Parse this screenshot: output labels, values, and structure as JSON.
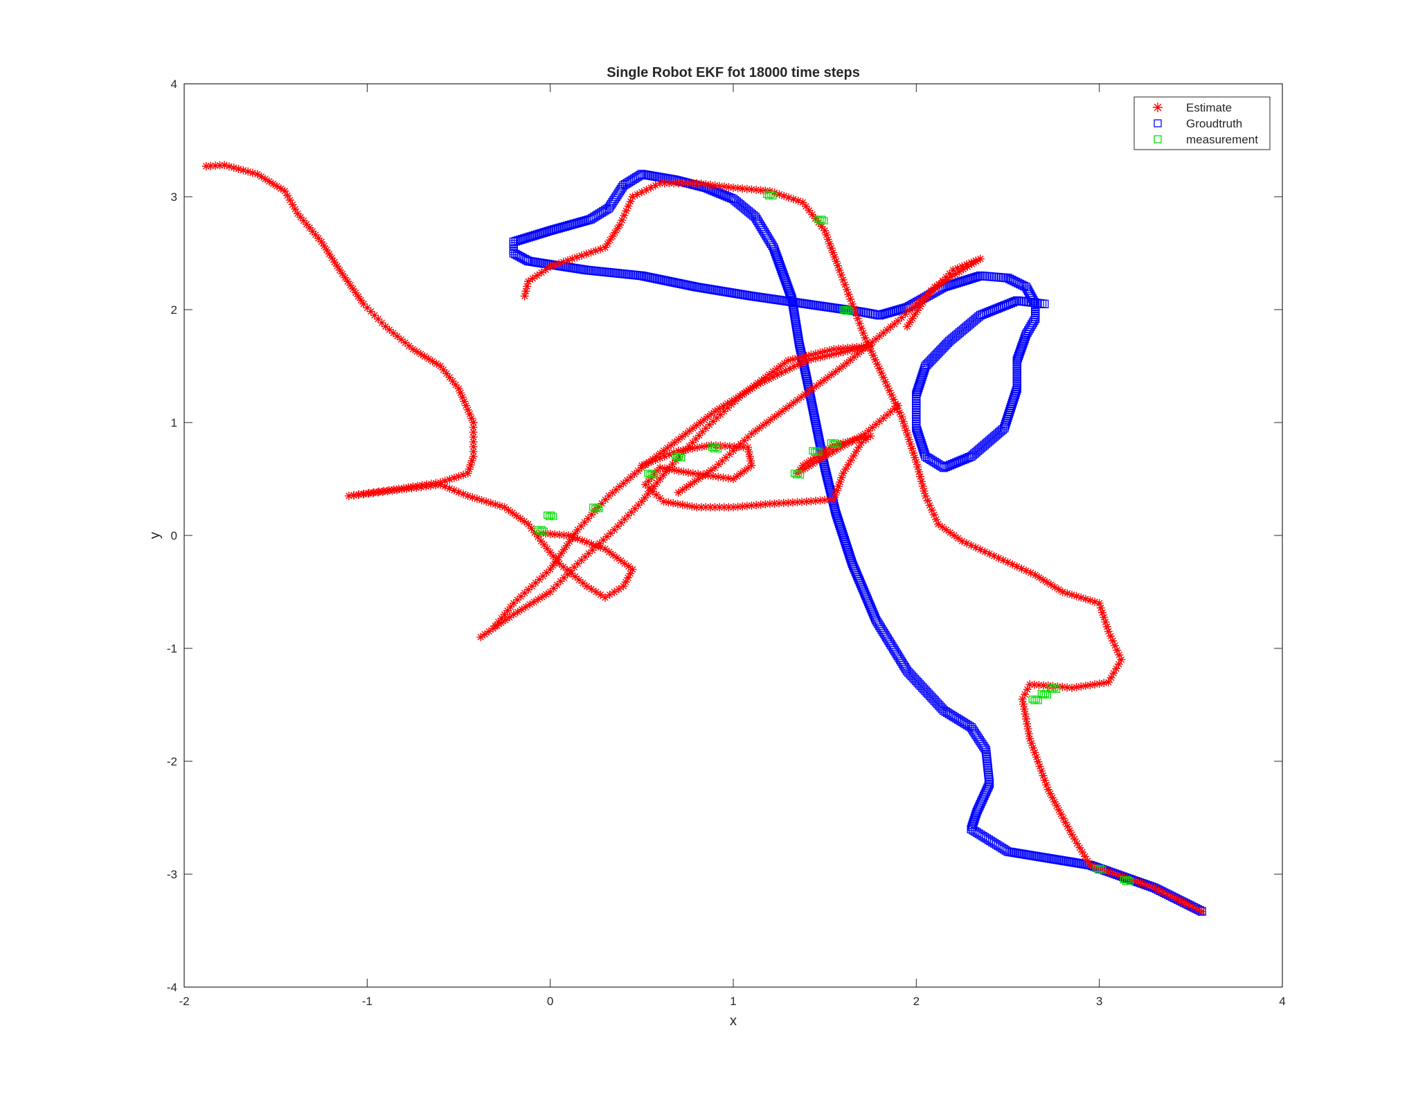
{
  "chart_data": {
    "type": "scatter",
    "title": "Single Robot EKF fot 18000 time steps",
    "xlabel": "x",
    "ylabel": "y",
    "xlim": [
      -2,
      4
    ],
    "ylim": [
      -4,
      4
    ],
    "xticks": [
      "-2",
      "-1",
      "0",
      "1",
      "2",
      "3",
      "4"
    ],
    "yticks": [
      "-4",
      "-3",
      "-2",
      "-1",
      "0",
      "1",
      "2",
      "3",
      "4"
    ],
    "grid": false,
    "legend_position": "top-right",
    "series": [
      {
        "name": "Groudtruth",
        "marker": "square",
        "color": "#0000ff",
        "points": [
          [
            -0.12,
            2.43
          ],
          [
            -0.2,
            2.5
          ],
          [
            -0.2,
            2.6
          ],
          [
            0.0,
            2.7
          ],
          [
            0.22,
            2.8
          ],
          [
            0.32,
            2.9
          ],
          [
            0.4,
            3.1
          ],
          [
            0.5,
            3.2
          ],
          [
            0.68,
            3.15
          ],
          [
            0.85,
            3.08
          ],
          [
            1.0,
            2.98
          ],
          [
            1.12,
            2.82
          ],
          [
            1.22,
            2.55
          ],
          [
            1.32,
            2.1
          ],
          [
            1.36,
            1.7
          ],
          [
            1.4,
            1.4
          ],
          [
            1.45,
            1.0
          ],
          [
            1.5,
            0.6
          ],
          [
            1.56,
            0.2
          ],
          [
            1.65,
            -0.25
          ],
          [
            1.78,
            -0.75
          ],
          [
            1.95,
            -1.2
          ],
          [
            2.15,
            -1.55
          ],
          [
            2.3,
            -1.7
          ],
          [
            2.38,
            -1.9
          ],
          [
            2.4,
            -2.2
          ],
          [
            2.33,
            -2.45
          ],
          [
            2.3,
            -2.6
          ],
          [
            2.5,
            -2.8
          ],
          [
            2.95,
            -2.92
          ],
          [
            3.3,
            -3.12
          ],
          [
            3.56,
            -3.33
          ]
        ],
        "points_2": [
          [
            -0.12,
            2.43
          ],
          [
            0.2,
            2.35
          ],
          [
            0.5,
            2.3
          ],
          [
            0.8,
            2.2
          ],
          [
            1.1,
            2.12
          ],
          [
            1.4,
            2.05
          ],
          [
            1.7,
            1.98
          ],
          [
            1.8,
            1.95
          ],
          [
            1.95,
            2.02
          ],
          [
            2.15,
            2.2
          ],
          [
            2.35,
            2.3
          ],
          [
            2.5,
            2.28
          ],
          [
            2.6,
            2.2
          ],
          [
            2.65,
            2.05
          ],
          [
            2.65,
            1.92
          ],
          [
            2.6,
            1.78
          ],
          [
            2.55,
            1.55
          ],
          [
            2.55,
            1.3
          ],
          [
            2.48,
            0.95
          ],
          [
            2.3,
            0.7
          ],
          [
            2.15,
            0.6
          ],
          [
            2.05,
            0.7
          ],
          [
            2.0,
            0.95
          ],
          [
            2.0,
            1.25
          ],
          [
            2.05,
            1.5
          ],
          [
            2.18,
            1.72
          ],
          [
            2.35,
            1.95
          ],
          [
            2.55,
            2.08
          ],
          [
            2.7,
            2.05
          ]
        ]
      },
      {
        "name": "Estimate",
        "marker": "asterisk",
        "color": "#ff0000",
        "points": [
          [
            -0.14,
            2.12
          ],
          [
            -0.12,
            2.25
          ],
          [
            0.0,
            2.38
          ],
          [
            0.12,
            2.45
          ],
          [
            0.3,
            2.55
          ],
          [
            0.38,
            2.75
          ],
          [
            0.45,
            3.0
          ],
          [
            0.6,
            3.12
          ],
          [
            0.8,
            3.12
          ],
          [
            1.0,
            3.08
          ],
          [
            1.2,
            3.05
          ],
          [
            1.38,
            2.95
          ],
          [
            1.5,
            2.7
          ],
          [
            1.58,
            2.35
          ],
          [
            1.65,
            2.05
          ],
          [
            1.72,
            1.75
          ],
          [
            1.82,
            1.4
          ],
          [
            1.92,
            1.05
          ],
          [
            2.0,
            0.65
          ],
          [
            2.05,
            0.35
          ],
          [
            2.12,
            0.1
          ],
          [
            2.25,
            -0.05
          ],
          [
            2.45,
            -0.2
          ],
          [
            2.65,
            -0.35
          ],
          [
            2.8,
            -0.5
          ],
          [
            3.0,
            -0.6
          ],
          [
            3.05,
            -0.85
          ],
          [
            3.12,
            -1.1
          ],
          [
            3.05,
            -1.3
          ],
          [
            2.85,
            -1.35
          ],
          [
            2.72,
            -1.33
          ],
          [
            2.62,
            -1.32
          ],
          [
            2.58,
            -1.45
          ],
          [
            2.62,
            -1.8
          ],
          [
            2.72,
            -2.25
          ],
          [
            2.85,
            -2.65
          ],
          [
            2.95,
            -2.92
          ],
          [
            3.3,
            -3.12
          ],
          [
            3.56,
            -3.33
          ]
        ],
        "points_2": [
          [
            -1.88,
            3.27
          ],
          [
            -1.78,
            3.28
          ],
          [
            -1.6,
            3.2
          ],
          [
            -1.45,
            3.05
          ],
          [
            -1.38,
            2.85
          ],
          [
            -1.25,
            2.6
          ],
          [
            -1.15,
            2.35
          ],
          [
            -1.02,
            2.05
          ],
          [
            -0.9,
            1.85
          ],
          [
            -0.75,
            1.65
          ],
          [
            -0.6,
            1.5
          ],
          [
            -0.5,
            1.3
          ],
          [
            -0.42,
            1.0
          ],
          [
            -0.42,
            0.7
          ],
          [
            -0.45,
            0.55
          ],
          [
            -0.6,
            0.47
          ],
          [
            -0.8,
            0.42
          ],
          [
            -1.1,
            0.35
          ],
          [
            -0.6,
            0.45
          ],
          [
            -0.45,
            0.35
          ],
          [
            -0.25,
            0.25
          ],
          [
            -0.12,
            0.1
          ],
          [
            -0.05,
            -0.05
          ],
          [
            0.05,
            -0.25
          ],
          [
            0.2,
            -0.45
          ],
          [
            0.3,
            -0.55
          ],
          [
            0.4,
            -0.45
          ],
          [
            0.45,
            -0.3
          ],
          [
            0.3,
            -0.12
          ],
          [
            0.1,
            0.0
          ],
          [
            -0.05,
            0.02
          ]
        ],
        "points_3": [
          [
            -0.38,
            -0.9
          ],
          [
            -0.2,
            -0.7
          ],
          [
            0.0,
            -0.5
          ],
          [
            0.15,
            -0.25
          ],
          [
            0.35,
            0.05
          ],
          [
            0.5,
            0.3
          ],
          [
            0.65,
            0.6
          ],
          [
            0.85,
            0.95
          ],
          [
            1.05,
            1.25
          ],
          [
            1.3,
            1.55
          ],
          [
            1.55,
            1.65
          ],
          [
            1.75,
            1.68
          ],
          [
            1.4,
            1.55
          ],
          [
            1.15,
            1.35
          ],
          [
            0.9,
            1.1
          ],
          [
            0.7,
            0.85
          ],
          [
            0.5,
            0.6
          ],
          [
            0.32,
            0.35
          ],
          [
            0.15,
            0.05
          ],
          [
            0.0,
            -0.3
          ],
          [
            -0.2,
            -0.6
          ],
          [
            -0.3,
            -0.8
          ]
        ],
        "points_4": [
          [
            0.5,
            0.62
          ],
          [
            0.7,
            0.75
          ],
          [
            0.88,
            0.8
          ],
          [
            1.08,
            0.78
          ],
          [
            1.1,
            0.62
          ],
          [
            1.0,
            0.5
          ],
          [
            0.78,
            0.55
          ],
          [
            0.6,
            0.6
          ],
          [
            0.52,
            0.45
          ],
          [
            0.62,
            0.3
          ],
          [
            0.8,
            0.25
          ],
          [
            1.0,
            0.25
          ],
          [
            1.2,
            0.28
          ],
          [
            1.4,
            0.3
          ],
          [
            1.55,
            0.32
          ],
          [
            1.6,
            0.55
          ],
          [
            1.7,
            0.82
          ],
          [
            1.75,
            0.88
          ],
          [
            1.55,
            0.8
          ],
          [
            1.38,
            0.62
          ],
          [
            1.35,
            0.55
          ],
          [
            1.5,
            0.7
          ],
          [
            1.72,
            0.9
          ],
          [
            1.9,
            1.15
          ]
        ],
        "points_5": [
          [
            0.7,
            0.38
          ],
          [
            0.9,
            0.6
          ],
          [
            1.1,
            0.9
          ],
          [
            1.35,
            1.2
          ],
          [
            1.6,
            1.5
          ],
          [
            1.9,
            1.9
          ],
          [
            2.1,
            2.2
          ],
          [
            2.28,
            2.38
          ],
          [
            2.35,
            2.45
          ],
          [
            2.2,
            2.35
          ],
          [
            2.05,
            2.1
          ],
          [
            1.95,
            1.85
          ]
        ]
      },
      {
        "name": "measurement",
        "marker": "square",
        "color": "#00dd00",
        "points": [
          [
            -0.05,
            0.05
          ],
          [
            0.0,
            0.18
          ],
          [
            0.25,
            0.25
          ],
          [
            0.55,
            0.55
          ],
          [
            0.7,
            0.7
          ],
          [
            0.9,
            0.78
          ],
          [
            1.35,
            0.55
          ],
          [
            1.45,
            0.75
          ],
          [
            1.55,
            0.82
          ],
          [
            1.62,
            2.0
          ],
          [
            1.48,
            2.8
          ],
          [
            1.2,
            3.02
          ],
          [
            2.65,
            -1.45
          ],
          [
            2.7,
            -1.4
          ],
          [
            2.75,
            -1.35
          ],
          [
            3.0,
            -2.95
          ],
          [
            3.15,
            -3.05
          ]
        ]
      }
    ]
  }
}
